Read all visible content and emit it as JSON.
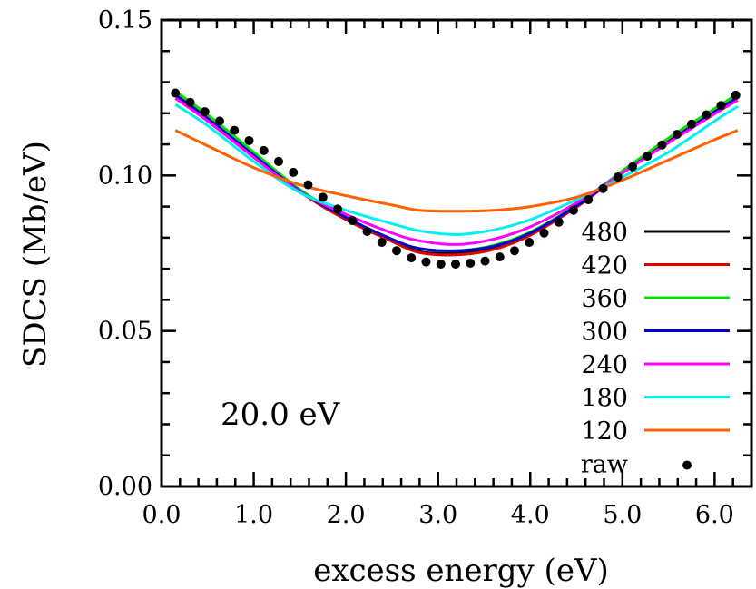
{
  "chart_data": {
    "type": "line",
    "title": "",
    "xlabel": "excess energy (eV)",
    "ylabel": "SDCS (Mb/eV)",
    "xlim": [
      0.0,
      6.4
    ],
    "ylim": [
      0.0,
      0.15
    ],
    "xticks": [
      0.0,
      1.0,
      2.0,
      3.0,
      4.0,
      5.0,
      6.0
    ],
    "xtick_labels": [
      "0.0",
      "1.0",
      "2.0",
      "3.0",
      "4.0",
      "5.0",
      "6.0"
    ],
    "yticks": [
      0.0,
      0.05,
      0.1,
      0.15
    ],
    "ytick_labels": [
      "0.00",
      "0.05",
      "0.10",
      "0.15"
    ],
    "grid": false,
    "legend_position": "bottom-right",
    "annotation": "20.0 eV",
    "legend_title": "",
    "series": [
      {
        "name": "480",
        "color": "#000000",
        "kind": "line",
        "x": [
          0.15,
          0.5,
          1.0,
          1.5,
          2.0,
          2.5,
          2.8,
          3.2,
          3.6,
          4.0,
          4.5,
          5.0,
          5.5,
          6.0,
          6.25
        ],
        "y": [
          0.1265,
          0.119,
          0.107,
          0.095,
          0.086,
          0.079,
          0.0755,
          0.075,
          0.0765,
          0.081,
          0.09,
          0.101,
          0.1115,
          0.121,
          0.1255
        ]
      },
      {
        "name": "420",
        "color": "#e00000",
        "kind": "line",
        "x": [
          0.15,
          0.5,
          1.0,
          1.5,
          2.0,
          2.5,
          2.8,
          3.2,
          3.6,
          4.0,
          4.5,
          5.0,
          5.5,
          6.0,
          6.25
        ],
        "y": [
          0.1265,
          0.1188,
          0.1068,
          0.0948,
          0.0858,
          0.0788,
          0.0752,
          0.0745,
          0.0762,
          0.0808,
          0.0898,
          0.1008,
          0.1113,
          0.1208,
          0.1255
        ]
      },
      {
        "name": "360",
        "color": "#00e000",
        "kind": "line",
        "x": [
          0.15,
          0.5,
          1.0,
          1.5,
          2.0,
          2.5,
          2.8,
          3.2,
          3.6,
          4.0,
          4.5,
          5.0,
          5.5,
          6.0,
          6.25
        ],
        "y": [
          0.127,
          0.1195,
          0.1075,
          0.0955,
          0.0865,
          0.0795,
          0.0765,
          0.0758,
          0.0775,
          0.0818,
          0.0905,
          0.1015,
          0.112,
          0.1215,
          0.1262
        ]
      },
      {
        "name": "300",
        "color": "#0000d0",
        "kind": "line",
        "x": [
          0.15,
          0.5,
          1.0,
          1.5,
          2.0,
          2.5,
          2.8,
          3.2,
          3.6,
          4.0,
          4.5,
          5.0,
          5.5,
          6.0,
          6.25
        ],
        "y": [
          0.1258,
          0.1183,
          0.1065,
          0.095,
          0.0865,
          0.0795,
          0.0765,
          0.0758,
          0.0772,
          0.0815,
          0.0902,
          0.1008,
          0.1108,
          0.1205,
          0.125
        ]
      },
      {
        "name": "240",
        "color": "#ff00ff",
        "kind": "line",
        "x": [
          0.15,
          0.5,
          1.0,
          1.5,
          2.0,
          2.5,
          2.8,
          3.2,
          3.6,
          4.0,
          4.5,
          5.0,
          5.5,
          6.0,
          6.25
        ],
        "y": [
          0.1248,
          0.1175,
          0.1058,
          0.0948,
          0.0875,
          0.0815,
          0.079,
          0.0778,
          0.0795,
          0.0835,
          0.0912,
          0.1008,
          0.1105,
          0.1198,
          0.1242
        ]
      },
      {
        "name": "180",
        "color": "#00f0f0",
        "kind": "line",
        "x": [
          0.15,
          0.5,
          1.0,
          1.5,
          2.0,
          2.5,
          2.8,
          3.2,
          3.6,
          4.0,
          4.5,
          5.0,
          5.5,
          6.0,
          6.25
        ],
        "y": [
          0.1228,
          0.116,
          0.1045,
          0.0945,
          0.0888,
          0.0845,
          0.0822,
          0.081,
          0.0825,
          0.0858,
          0.0922,
          0.0995,
          0.1075,
          0.1175,
          0.1222
        ]
      },
      {
        "name": "120",
        "color": "#ff6000",
        "kind": "line",
        "x": [
          0.15,
          0.5,
          1.0,
          1.5,
          2.0,
          2.5,
          2.8,
          3.2,
          3.6,
          4.0,
          4.5,
          5.0,
          5.5,
          6.0,
          6.25
        ],
        "y": [
          0.1145,
          0.1095,
          0.1025,
          0.097,
          0.0935,
          0.0905,
          0.0888,
          0.0885,
          0.0888,
          0.09,
          0.093,
          0.0985,
          0.105,
          0.1115,
          0.1145
        ]
      },
      {
        "name": "raw",
        "color": "#000000",
        "kind": "points",
        "x": [
          0.15,
          0.31,
          0.47,
          0.63,
          0.79,
          0.95,
          1.11,
          1.27,
          1.43,
          1.59,
          1.75,
          1.91,
          2.07,
          2.23,
          2.39,
          2.55,
          2.71,
          2.87,
          3.03,
          3.19,
          3.35,
          3.51,
          3.67,
          3.83,
          3.99,
          4.15,
          4.31,
          4.47,
          4.63,
          4.79,
          4.95,
          5.11,
          5.27,
          5.43,
          5.59,
          5.75,
          5.91,
          6.07,
          6.23
        ],
        "y": [
          0.1265,
          0.1235,
          0.1205,
          0.1175,
          0.1145,
          0.1112,
          0.108,
          0.1045,
          0.101,
          0.097,
          0.093,
          0.0892,
          0.0855,
          0.082,
          0.0785,
          0.0758,
          0.0735,
          0.0722,
          0.0715,
          0.0715,
          0.0718,
          0.0725,
          0.0738,
          0.0758,
          0.0785,
          0.0815,
          0.085,
          0.0888,
          0.0922,
          0.0958,
          0.0995,
          0.1028,
          0.1062,
          0.1098,
          0.1132,
          0.1165,
          0.1195,
          0.1225,
          0.1258
        ]
      }
    ]
  }
}
